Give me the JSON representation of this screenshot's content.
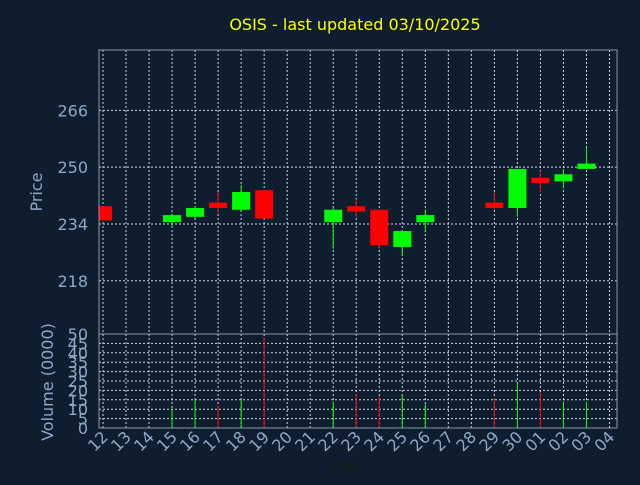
{
  "chart_data": {
    "type": "candlestick",
    "title": "OSIS - last updated 03/10/2025",
    "xlabel": "Day",
    "ylabel_price": "Price",
    "ylabel_volume": "Volume (0000)",
    "days": [
      "12",
      "13",
      "14",
      "15",
      "16",
      "17",
      "18",
      "19",
      "20",
      "21",
      "22",
      "23",
      "24",
      "25",
      "26",
      "27",
      "28",
      "29",
      "30",
      "01",
      "02",
      "03",
      "04"
    ],
    "price_ticks": [
      218,
      234,
      250,
      266
    ],
    "price_range": [
      203,
      283
    ],
    "volume_ticks": [
      0,
      5,
      10,
      15,
      20,
      25,
      30,
      35,
      40,
      45,
      50
    ],
    "volume_range": [
      0,
      50
    ],
    "grid": true,
    "colors": {
      "background": "#0f1e2e",
      "plot_border": "#8a9bb0",
      "grid": "#c8d4e0",
      "title": "#ffff00",
      "label": "#8ea8c8",
      "up": "#00ff00",
      "down": "#ff0000"
    },
    "candles": [
      {
        "day": "12",
        "open": 239,
        "close": 235,
        "high": 239,
        "low": 235,
        "volume": 0,
        "dir": "down"
      },
      {
        "day": "15",
        "open": 234.5,
        "close": 236.5,
        "high": 237,
        "low": 233,
        "volume": 10,
        "dir": "up"
      },
      {
        "day": "16",
        "open": 236,
        "close": 238.5,
        "high": 239,
        "low": 235.5,
        "volume": 15,
        "dir": "up"
      },
      {
        "day": "17",
        "open": 240,
        "close": 238.5,
        "high": 243,
        "low": 237,
        "volume": 12,
        "dir": "down"
      },
      {
        "day": "18",
        "open": 238,
        "close": 243,
        "high": 245,
        "low": 237.5,
        "volume": 15,
        "dir": "up"
      },
      {
        "day": "19",
        "open": 243.5,
        "close": 235.5,
        "high": 243.5,
        "low": 235.5,
        "volume": 48,
        "dir": "down"
      },
      {
        "day": "22",
        "open": 234.5,
        "close": 238,
        "high": 238.5,
        "low": 227,
        "volume": 14,
        "dir": "up"
      },
      {
        "day": "23",
        "open": 239,
        "close": 237.5,
        "high": 241,
        "low": 236,
        "volume": 18,
        "dir": "down"
      },
      {
        "day": "24",
        "open": 238,
        "close": 228,
        "high": 238,
        "low": 227,
        "volume": 17,
        "dir": "down"
      },
      {
        "day": "25",
        "open": 227.5,
        "close": 232,
        "high": 232,
        "low": 225,
        "volume": 18,
        "dir": "up"
      },
      {
        "day": "26",
        "open": 234.5,
        "close": 236.5,
        "high": 238,
        "low": 232,
        "volume": 13,
        "dir": "up"
      },
      {
        "day": "29",
        "open": 240,
        "close": 238.5,
        "high": 243,
        "low": 238,
        "volume": 16,
        "dir": "down"
      },
      {
        "day": "30",
        "open": 238.5,
        "close": 249.5,
        "high": 249.5,
        "low": 236,
        "volume": 24,
        "dir": "up"
      },
      {
        "day": "01",
        "open": 247,
        "close": 245.5,
        "high": 249,
        "low": 243,
        "volume": 19,
        "dir": "down"
      },
      {
        "day": "02",
        "open": 246,
        "close": 248,
        "high": 249.5,
        "low": 244,
        "volume": 14,
        "dir": "up"
      },
      {
        "day": "03",
        "open": 249.5,
        "close": 251,
        "high": 255.5,
        "low": 249.5,
        "volume": 14,
        "dir": "up"
      }
    ]
  }
}
